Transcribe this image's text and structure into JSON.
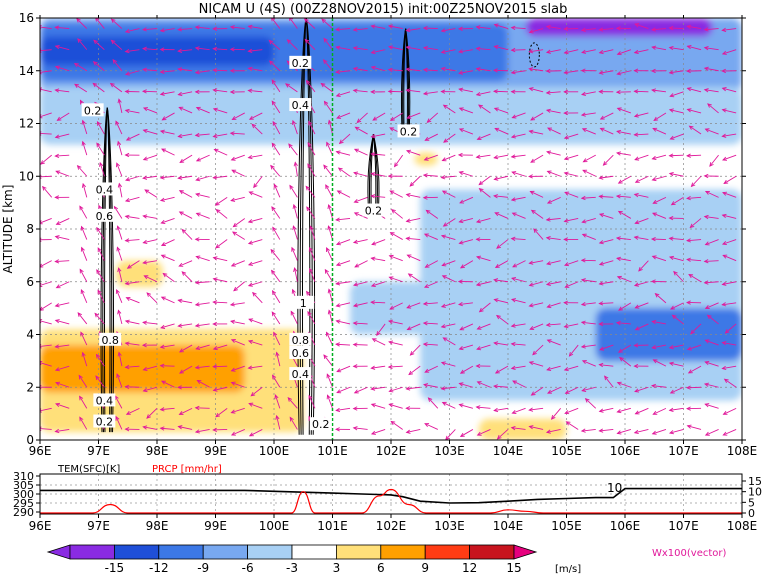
{
  "title": "NICAM U (4S) (00Z28NOV2015) init:00Z25NOV2015 slab",
  "colors": {
    "c_m15": "#8a2be2",
    "c_m12": "#1f4fd8",
    "c_m9": "#3c78e6",
    "c_m6": "#78a8f0",
    "c_m3": "#a8d0f4",
    "c_0": "#ffffff",
    "c_3": "#ffe07a",
    "c_6": "#ffa000",
    "c_9": "#ff3c14",
    "c_12": "#c8141e",
    "c_15": "#e6007e",
    "vector": "#e0189a",
    "contour": "#000000",
    "marker_line": "#00b020",
    "prcp": "#ff0000",
    "tem": "#000000"
  },
  "chart_data": [
    {
      "type": "heatmap",
      "title": "NICAM U (4S) (00Z28NOV2015) init:00Z25NOV2015 slab",
      "xlabel": "",
      "ylabel": "ALTITUDE [km]",
      "xlim": [
        96,
        108
      ],
      "ylim": [
        0,
        16
      ],
      "x_ticks": [
        "96E",
        "97E",
        "98E",
        "99E",
        "100E",
        "101E",
        "102E",
        "103E",
        "104E",
        "105E",
        "106E",
        "107E",
        "108E"
      ],
      "y_ticks": [
        "0",
        "2",
        "4",
        "6",
        "8",
        "10",
        "12",
        "14",
        "16"
      ],
      "grid": true,
      "vertical_marker_x": 101,
      "contour_labels": [
        {
          "text": "0.2",
          "lon": 96.9,
          "alt": 12.5
        },
        {
          "text": "0.4",
          "lon": 97.1,
          "alt": 9.5
        },
        {
          "text": "0.6",
          "lon": 97.1,
          "alt": 8.5
        },
        {
          "text": "0.8",
          "lon": 97.2,
          "alt": 3.8
        },
        {
          "text": "0.4",
          "lon": 97.1,
          "alt": 1.5
        },
        {
          "text": "0.2",
          "lon": 97.1,
          "alt": 0.7
        },
        {
          "text": "0.2",
          "lon": 100.45,
          "alt": 14.3
        },
        {
          "text": "0.4",
          "lon": 100.45,
          "alt": 12.7
        },
        {
          "text": "1",
          "lon": 100.5,
          "alt": 5.2
        },
        {
          "text": "0.8",
          "lon": 100.45,
          "alt": 3.8
        },
        {
          "text": "0.6",
          "lon": 100.45,
          "alt": 3.3
        },
        {
          "text": "0.4",
          "lon": 100.45,
          "alt": 2.5
        },
        {
          "text": "0.2",
          "lon": 100.8,
          "alt": 0.6
        },
        {
          "text": "0.2",
          "lon": 101.7,
          "alt": 8.7
        },
        {
          "text": "0.2",
          "lon": 102.3,
          "alt": 11.7
        }
      ],
      "filled_regions": [
        {
          "level": -6,
          "lon": [
            96,
            108
          ],
          "alt": [
            13.2,
            16
          ]
        },
        {
          "level": -9,
          "lon": [
            96,
            104
          ],
          "alt": [
            13.6,
            15.8
          ]
        },
        {
          "level": -12,
          "lon": [
            96,
            100
          ],
          "alt": [
            14.2,
            15.3
          ]
        },
        {
          "level": -15,
          "lon": [
            104.3,
            107.5
          ],
          "alt": [
            15.3,
            16
          ]
        },
        {
          "level": -6,
          "lon": [
            96,
            101.5
          ],
          "alt": [
            11.6,
            13.2
          ]
        },
        {
          "level": -3,
          "lon": [
            96,
            108
          ],
          "alt": [
            11.2,
            13.4
          ]
        },
        {
          "level": -6,
          "lon": [
            104.5,
            108
          ],
          "alt": [
            2,
            8.2
          ]
        },
        {
          "level": -3,
          "lon": [
            102.5,
            108
          ],
          "alt": [
            1.5,
            9.5
          ]
        },
        {
          "level": -9,
          "lon": [
            105.5,
            108
          ],
          "alt": [
            3,
            5
          ]
        },
        {
          "level": -3,
          "lon": [
            101.3,
            103.5
          ],
          "alt": [
            4,
            6
          ]
        },
        {
          "level": 3,
          "lon": [
            96,
            100.5
          ],
          "alt": [
            0.3,
            4.2
          ]
        },
        {
          "level": 6,
          "lon": [
            96,
            99.5
          ],
          "alt": [
            1.8,
            3.6
          ]
        },
        {
          "level": 3,
          "lon": [
            97.3,
            98.1
          ],
          "alt": [
            5.8,
            6.8
          ]
        },
        {
          "level": 3,
          "lon": [
            102.4,
            102.8
          ],
          "alt": [
            10.4,
            10.9
          ]
        },
        {
          "level": 3,
          "lon": [
            103.5,
            105
          ],
          "alt": [
            0,
            0.8
          ]
        }
      ],
      "vector_label": "Wx100(vector)"
    },
    {
      "type": "line",
      "xlim": [
        96,
        108
      ],
      "x_ticks": [
        "96E",
        "97E",
        "98E",
        "99E",
        "100E",
        "101E",
        "102E",
        "103E",
        "104E",
        "105E",
        "106E",
        "107E",
        "108E"
      ],
      "left_label": "TEM(SFC)[K]",
      "left_ticks": [
        "310",
        "305",
        "300",
        "295",
        "290"
      ],
      "left_range": [
        290,
        310
      ],
      "right_label": "PRCP [mm/hr]",
      "right_ticks": [
        "15",
        "10",
        "5",
        "0"
      ],
      "right_range": [
        0,
        15
      ],
      "annotation": "10",
      "series": [
        {
          "name": "TEM(SFC)[K]",
          "x": [
            96,
            97,
            98,
            99,
            99.5,
            100,
            100.5,
            101,
            101.5,
            102,
            102.2,
            102.5,
            103,
            103.5,
            104,
            104.5,
            105,
            105.5,
            105.8,
            106,
            106.3,
            107,
            108
          ],
          "y": [
            302,
            302,
            302,
            302,
            302,
            301.5,
            301,
            300.5,
            300,
            299.5,
            298.5,
            296,
            295,
            295.2,
            296,
            297,
            297.5,
            298,
            298,
            303,
            303,
            303,
            303
          ]
        },
        {
          "name": "PRCP [mm/hr]",
          "x": [
            96,
            96.9,
            97.2,
            97.5,
            98,
            100,
            100.3,
            100.5,
            100.7,
            101,
            101.5,
            101.8,
            102,
            102.3,
            102.6,
            103,
            103.7,
            104,
            104.3,
            104.6,
            105,
            108
          ],
          "y": [
            0,
            0,
            4,
            0,
            0,
            0,
            0,
            10,
            0,
            0,
            0,
            8,
            11,
            4,
            0,
            0,
            0,
            1.5,
            0.8,
            0,
            0,
            0
          ]
        }
      ]
    }
  ],
  "colorbar": {
    "tick_labels": [
      "-15",
      "-12",
      "-9",
      "-6",
      "-3",
      "3",
      "6",
      "9",
      "12",
      "15"
    ],
    "unit": "[m/s]"
  }
}
